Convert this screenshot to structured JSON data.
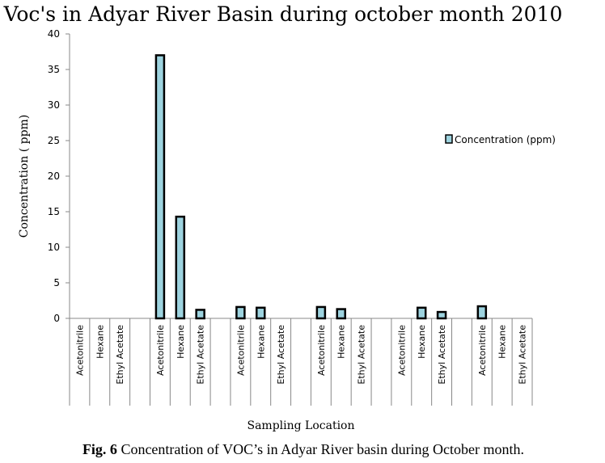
{
  "chart_data": {
    "type": "bar",
    "title": "Voc's in Adyar River Basin during october month 2010",
    "xlabel": "Sampling  Location",
    "ylabel": "Concentration ( ppm)",
    "ylim": [
      0,
      40
    ],
    "yticks": [
      0,
      5,
      10,
      15,
      20,
      25,
      30,
      35,
      40
    ],
    "grid": false,
    "legend_position": "right",
    "bar_color": "#9dd3df",
    "bar_edge_color": "#000000",
    "categories": [
      "Acetonitrile",
      "Hexane",
      "Ethyl Acetate",
      "",
      "Acetonitrile",
      "Hexane",
      "Ethyl Acetate",
      "",
      "Acetonitrile",
      "Hexane",
      "Ethyl Acetate",
      "",
      "Acetonitrile",
      "Hexane",
      "Ethyl Acetate",
      "",
      "Acetonitrile",
      "Hexane",
      "Ethyl Acetate",
      "",
      "Acetonitrile",
      "Hexane",
      "Ethyl Acetate"
    ],
    "series": [
      {
        "name": "Concentration (ppm)",
        "values": [
          0,
          0,
          0,
          null,
          37,
          14.3,
          1.2,
          null,
          1.6,
          1.5,
          0,
          null,
          1.6,
          1.3,
          0,
          null,
          0,
          1.5,
          0.9,
          null,
          1.7,
          0,
          0
        ]
      }
    ]
  },
  "caption": {
    "label": "Fig. 6",
    "text": " Concentration of VOC’s in Adyar River basin during October month."
  }
}
